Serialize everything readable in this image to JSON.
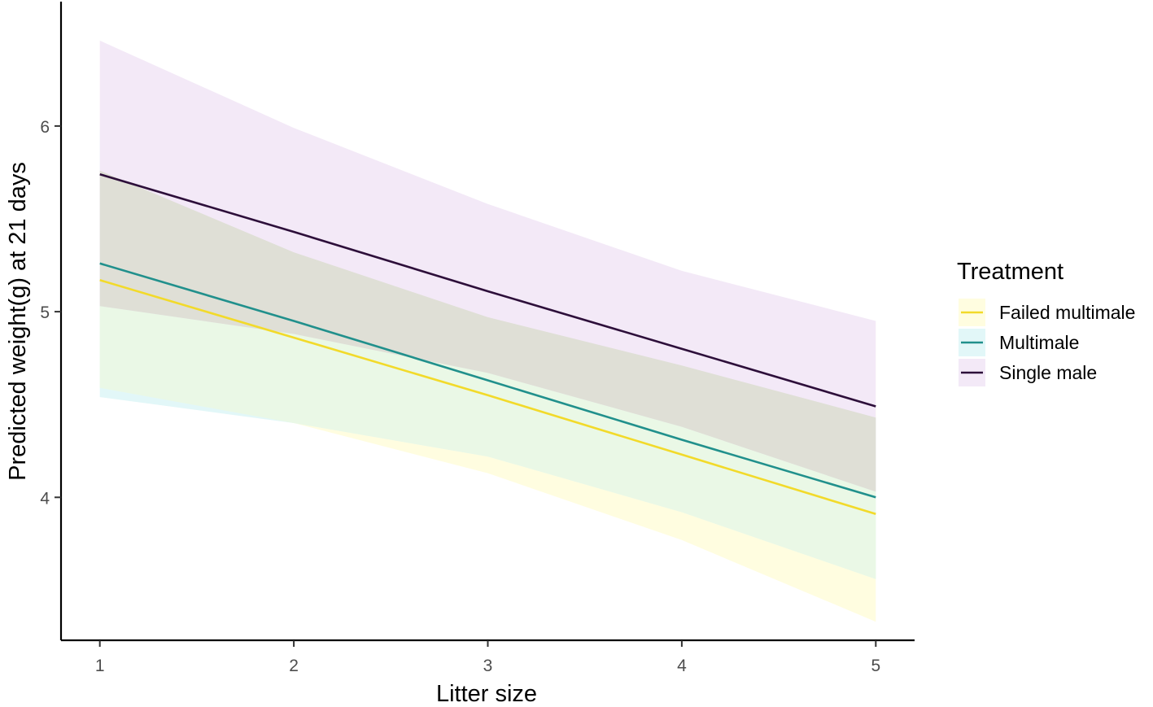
{
  "chart_data": {
    "type": "line",
    "xlabel": "Litter size",
    "ylabel": "Predicted weight(g) at 21 days",
    "x": [
      1,
      2,
      3,
      4,
      5
    ],
    "xlim": [
      0.8,
      5.2
    ],
    "ylim": [
      3.23,
      6.67
    ],
    "x_ticks": [
      "1",
      "2",
      "3",
      "4",
      "5"
    ],
    "y_ticks": [
      "4",
      "5",
      "6"
    ],
    "y_tick_values": [
      4,
      5,
      6
    ],
    "grid": false,
    "legend": {
      "title": "Treatment",
      "placement": "right"
    },
    "series": [
      {
        "name": "Failed multimale",
        "color": "#F2DA2A",
        "band_color": "#FFFDE0",
        "values": [
          5.17,
          4.86,
          4.55,
          4.23,
          3.91
        ],
        "lower": [
          4.59,
          4.4,
          4.13,
          3.77,
          3.33
        ],
        "upper": [
          5.76,
          5.32,
          4.97,
          4.71,
          4.5
        ]
      },
      {
        "name": "Multimale",
        "color": "#21908C",
        "band_color": "#E2F7F8",
        "values": [
          5.26,
          4.95,
          4.63,
          4.31,
          4.0
        ],
        "lower": [
          4.54,
          4.4,
          4.22,
          3.92,
          3.56
        ],
        "upper": [
          5.98,
          5.5,
          5.03,
          4.7,
          4.43
        ]
      },
      {
        "name": "Single male",
        "color": "#2D0F3A",
        "band_color": "#F3E9F7",
        "values": [
          5.74,
          5.43,
          5.11,
          4.8,
          4.49
        ],
        "lower": [
          5.03,
          4.88,
          4.67,
          4.38,
          4.03
        ],
        "upper": [
          6.46,
          5.99,
          5.58,
          5.22,
          4.95
        ]
      }
    ],
    "overlap_band": {
      "color": "#DFDFD6",
      "lower": [
        5.03,
        4.88,
        4.67,
        4.38,
        4.03
      ],
      "upper": [
        5.76,
        5.32,
        4.97,
        4.71,
        4.43
      ]
    },
    "low_overlap_band": {
      "color": "#EAF8E6",
      "lower": [
        4.59,
        4.4,
        4.22,
        3.92,
        3.56
      ],
      "upper": [
        5.03,
        4.88,
        4.67,
        4.38,
        4.03
      ]
    }
  }
}
